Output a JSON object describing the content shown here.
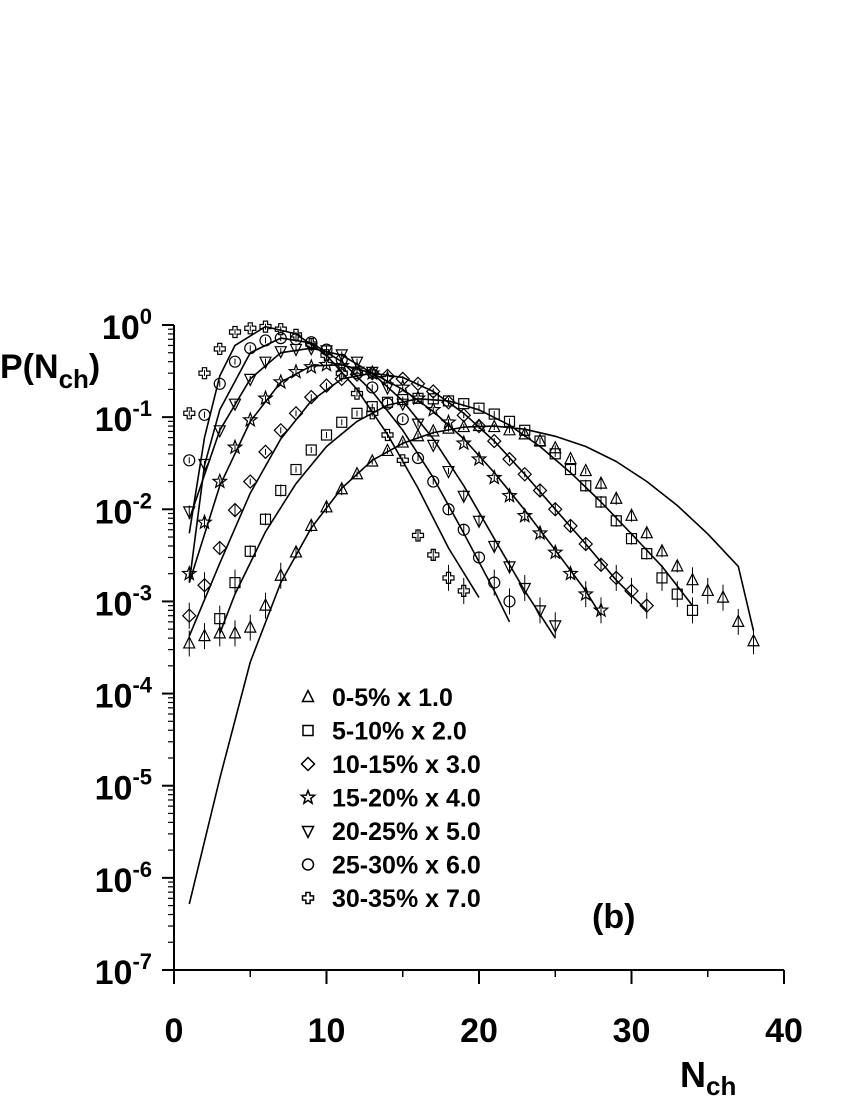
{
  "chart_data": {
    "type": "scatter",
    "xlabel": {
      "base": "N",
      "sub": "ch"
    },
    "ylabel": {
      "base": "P(N",
      "sub": "ch",
      "close": ")"
    },
    "xlim": [
      0,
      40
    ],
    "ylim": [
      1e-07,
      1
    ],
    "yscale": "log",
    "x_ticks": [
      0,
      10,
      20,
      30,
      40
    ],
    "x_tick_labels": [
      "0",
      "10",
      "20",
      "30",
      "40"
    ],
    "y_tick_exponents": [
      0,
      -1,
      -2,
      -3,
      -4,
      -5,
      -6,
      -7
    ],
    "y_tick_base": "10",
    "y_tick_exponent_labels": [
      "0",
      "-1",
      "-2",
      "-3",
      "-4",
      "-5",
      "-6",
      "-7"
    ],
    "annotation": "(b)",
    "legend_position": "bottom-center",
    "series": [
      {
        "name": "0-5% x 1.0",
        "marker": "triangle-up",
        "x": [
          1,
          2,
          3,
          4,
          5,
          6,
          7,
          8,
          9,
          10,
          11,
          12,
          13,
          14,
          15,
          16,
          17,
          18,
          19,
          20,
          21,
          22,
          23,
          24,
          25,
          26,
          27,
          28,
          29,
          30,
          31,
          32,
          33,
          34,
          35,
          36,
          37,
          38
        ],
        "y": [
          0.00035,
          0.00042,
          0.00045,
          0.00045,
          0.00052,
          0.0009,
          0.0019,
          0.0034,
          0.0066,
          0.0105,
          0.0165,
          0.024,
          0.033,
          0.043,
          0.053,
          0.062,
          0.07,
          0.075,
          0.078,
          0.08,
          0.078,
          0.072,
          0.065,
          0.055,
          0.046,
          0.035,
          0.026,
          0.019,
          0.013,
          0.0085,
          0.0055,
          0.0035,
          0.0024,
          0.0017,
          0.0013,
          0.0011,
          0.0006,
          0.00037
        ],
        "fit": [
          [
            1,
            5.2e-07
          ],
          [
            3,
            1.2e-05
          ],
          [
            5,
            0.00022
          ],
          [
            7,
            0.0016
          ],
          [
            9,
            0.0063
          ],
          [
            11,
            0.017
          ],
          [
            13,
            0.034
          ],
          [
            15,
            0.052
          ],
          [
            17,
            0.068
          ],
          [
            19,
            0.078
          ],
          [
            21,
            0.08
          ],
          [
            23,
            0.074
          ],
          [
            25,
            0.062
          ],
          [
            27,
            0.048
          ],
          [
            29,
            0.033
          ],
          [
            31,
            0.02
          ],
          [
            33,
            0.011
          ],
          [
            35,
            0.0054
          ],
          [
            37,
            0.0024
          ],
          [
            38,
            0.00048
          ]
        ]
      },
      {
        "name": "5-10% x 2.0",
        "marker": "square",
        "x": [
          3,
          4,
          5,
          6,
          7,
          8,
          9,
          10,
          11,
          12,
          13,
          14,
          15,
          16,
          17,
          18,
          19,
          20,
          21,
          22,
          23,
          24,
          25,
          26,
          27,
          28,
          29,
          30,
          31,
          32,
          33,
          34
        ],
        "y": [
          0.00065,
          0.0016,
          0.0035,
          0.0078,
          0.016,
          0.027,
          0.044,
          0.064,
          0.088,
          0.11,
          0.13,
          0.145,
          0.155,
          0.16,
          0.158,
          0.15,
          0.14,
          0.125,
          0.108,
          0.09,
          0.072,
          0.055,
          0.04,
          0.027,
          0.018,
          0.012,
          0.0075,
          0.0048,
          0.0033,
          0.0018,
          0.0012,
          0.0008
        ],
        "fit": [
          [
            3,
            0.00045
          ],
          [
            4,
            0.0012
          ],
          [
            6,
            0.0057
          ],
          [
            8,
            0.019
          ],
          [
            10,
            0.048
          ],
          [
            12,
            0.09
          ],
          [
            14,
            0.135
          ],
          [
            16,
            0.158
          ],
          [
            18,
            0.15
          ],
          [
            20,
            0.12
          ],
          [
            22,
            0.082
          ],
          [
            24,
            0.048
          ],
          [
            26,
            0.025
          ],
          [
            28,
            0.012
          ],
          [
            30,
            0.0054
          ],
          [
            32,
            0.0024
          ],
          [
            34,
            0.0009
          ]
        ]
      },
      {
        "name": "10-15% x 3.0",
        "marker": "diamond",
        "x": [
          1,
          2,
          3,
          4,
          5,
          6,
          7,
          8,
          9,
          10,
          11,
          12,
          13,
          14,
          15,
          16,
          17,
          18,
          19,
          20,
          21,
          22,
          23,
          24,
          25,
          26,
          27,
          28,
          29,
          30,
          31
        ],
        "y": [
          0.0007,
          0.0015,
          0.0038,
          0.0098,
          0.02,
          0.042,
          0.072,
          0.11,
          0.165,
          0.22,
          0.26,
          0.29,
          0.3,
          0.28,
          0.26,
          0.23,
          0.19,
          0.145,
          0.105,
          0.08,
          0.055,
          0.035,
          0.024,
          0.016,
          0.01,
          0.0066,
          0.0042,
          0.0025,
          0.0018,
          0.0013,
          0.0009
        ],
        "fit": [
          [
            1,
            0.00042
          ],
          [
            3,
            0.0026
          ],
          [
            5,
            0.015
          ],
          [
            7,
            0.058
          ],
          [
            9,
            0.15
          ],
          [
            11,
            0.26
          ],
          [
            13,
            0.3
          ],
          [
            15,
            0.27
          ],
          [
            17,
            0.19
          ],
          [
            19,
            0.11
          ],
          [
            21,
            0.055
          ],
          [
            23,
            0.024
          ],
          [
            25,
            0.01
          ],
          [
            27,
            0.0042
          ],
          [
            29,
            0.0017
          ],
          [
            31,
            0.0008
          ]
        ]
      },
      {
        "name": "15-20% x 4.0",
        "marker": "star",
        "x": [
          1,
          2,
          3,
          4,
          5,
          6,
          7,
          8,
          9,
          10,
          11,
          12,
          13,
          14,
          15,
          16,
          17,
          18,
          19,
          20,
          21,
          22,
          23,
          24,
          25,
          26,
          27,
          28
        ],
        "y": [
          0.002,
          0.0072,
          0.02,
          0.047,
          0.093,
          0.16,
          0.24,
          0.31,
          0.35,
          0.37,
          0.36,
          0.33,
          0.3,
          0.26,
          0.21,
          0.16,
          0.12,
          0.088,
          0.052,
          0.035,
          0.022,
          0.014,
          0.0085,
          0.0055,
          0.0034,
          0.002,
          0.0012,
          0.0008
        ],
        "fit": [
          [
            1,
            0.0016
          ],
          [
            3,
            0.018
          ],
          [
            5,
            0.09
          ],
          [
            7,
            0.24
          ],
          [
            9,
            0.36
          ],
          [
            11,
            0.37
          ],
          [
            13,
            0.3
          ],
          [
            15,
            0.2
          ],
          [
            17,
            0.115
          ],
          [
            19,
            0.058
          ],
          [
            21,
            0.025
          ],
          [
            23,
            0.0098
          ],
          [
            25,
            0.0036
          ],
          [
            27,
            0.0013
          ],
          [
            28,
            0.0007
          ]
        ]
      },
      {
        "name": "20-25% x 5.0",
        "marker": "triangle-down",
        "x": [
          1,
          2,
          3,
          4,
          5,
          6,
          7,
          8,
          9,
          10,
          11,
          12,
          13,
          14,
          15,
          16,
          17,
          18,
          19,
          20,
          21,
          22,
          23,
          24,
          25
        ],
        "y": [
          0.0095,
          0.031,
          0.072,
          0.14,
          0.26,
          0.4,
          0.52,
          0.55,
          0.56,
          0.53,
          0.48,
          0.4,
          0.31,
          0.21,
          0.14,
          0.085,
          0.05,
          0.026,
          0.014,
          0.0075,
          0.004,
          0.0024,
          0.0014,
          0.0008,
          0.00055
        ],
        "fit": [
          [
            1,
            0.0078
          ],
          [
            3,
            0.072
          ],
          [
            5,
            0.26
          ],
          [
            7,
            0.5
          ],
          [
            9,
            0.56
          ],
          [
            11,
            0.47
          ],
          [
            13,
            0.3
          ],
          [
            15,
            0.15
          ],
          [
            17,
            0.058
          ],
          [
            19,
            0.018
          ],
          [
            21,
            0.0048
          ],
          [
            23,
            0.0013
          ],
          [
            25,
            0.0004
          ]
        ]
      },
      {
        "name": "25-30% x 6.0",
        "marker": "circle",
        "x": [
          1,
          2,
          3,
          4,
          5,
          6,
          7,
          8,
          9,
          10,
          11,
          12,
          13,
          14,
          15,
          16,
          17,
          18,
          19,
          20,
          21,
          22
        ],
        "y": [
          0.034,
          0.106,
          0.23,
          0.4,
          0.56,
          0.68,
          0.72,
          0.7,
          0.65,
          0.54,
          0.42,
          0.3,
          0.21,
          0.14,
          0.095,
          0.036,
          0.02,
          0.01,
          0.006,
          0.003,
          0.0016,
          0.001
        ],
        "fit": [
          [
            1,
            0.0016
          ],
          [
            2,
            0.03
          ],
          [
            3,
            0.12
          ],
          [
            5,
            0.5
          ],
          [
            7,
            0.72
          ],
          [
            9,
            0.64
          ],
          [
            11,
            0.4
          ],
          [
            13,
            0.19
          ],
          [
            15,
            0.072
          ],
          [
            17,
            0.022
          ],
          [
            19,
            0.0055
          ],
          [
            21,
            0.0013
          ],
          [
            22,
            0.0006
          ]
        ]
      },
      {
        "name": "30-35% x 7.0",
        "marker": "cross",
        "x": [
          1,
          2,
          3,
          4,
          5,
          6,
          7,
          8,
          9,
          10,
          11,
          12,
          13,
          14,
          15,
          16,
          17,
          18,
          19
        ],
        "y": [
          0.11,
          0.3,
          0.55,
          0.84,
          0.92,
          0.96,
          0.9,
          0.78,
          0.62,
          0.47,
          0.3,
          0.18,
          0.11,
          0.064,
          0.034,
          0.0052,
          0.0032,
          0.0018,
          0.0013
        ],
        "fit": [
          [
            1,
            0.0055
          ],
          [
            2,
            0.06
          ],
          [
            3,
            0.28
          ],
          [
            4,
            0.6
          ],
          [
            6,
            0.96
          ],
          [
            8,
            0.8
          ],
          [
            10,
            0.47
          ],
          [
            12,
            0.2
          ],
          [
            14,
            0.065
          ],
          [
            16,
            0.017
          ],
          [
            18,
            0.0038
          ],
          [
            20,
            0.0011
          ]
        ]
      }
    ]
  }
}
